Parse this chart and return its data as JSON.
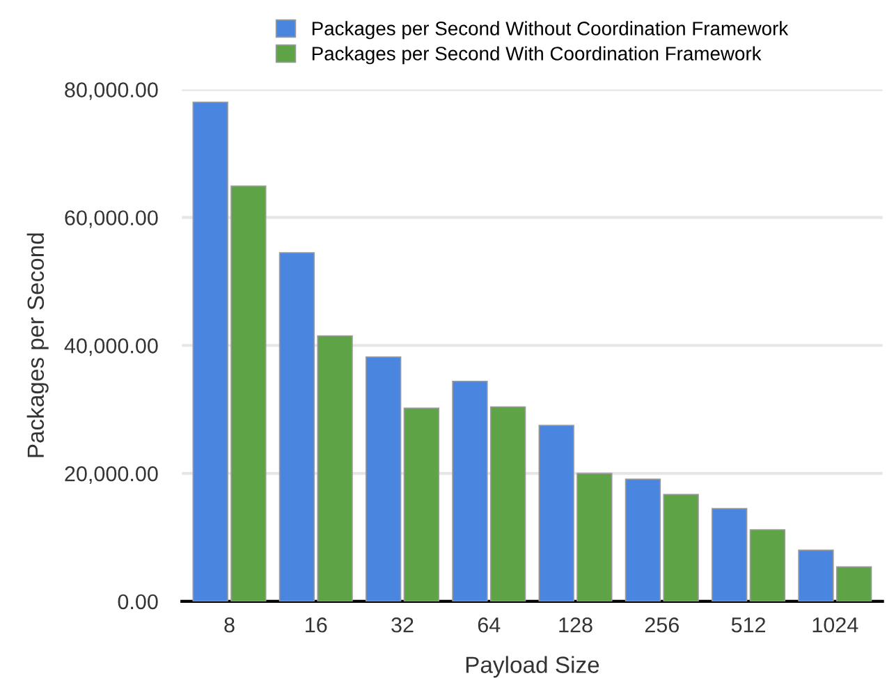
{
  "chart_data": {
    "type": "bar",
    "xlabel": "Payload Size",
    "ylabel": "Packages per Second",
    "categories": [
      "8",
      "16",
      "32",
      "64",
      "128",
      "256",
      "512",
      "1024"
    ],
    "series": [
      {
        "name": "Packages per Second Without Coordination Framework",
        "color": "#4a86e0",
        "values": [
          78000,
          54500,
          38200,
          34400,
          27500,
          19100,
          14500,
          8000
        ]
      },
      {
        "name": "Packages per Second With Coordination Framework",
        "color": "#5ea447",
        "values": [
          64900,
          41500,
          30200,
          30400,
          20000,
          16700,
          11200,
          5400
        ]
      }
    ],
    "ylim": [
      0,
      80000
    ],
    "yticks": [
      {
        "value": 0,
        "label": "0.00"
      },
      {
        "value": 20000,
        "label": "20,000.00"
      },
      {
        "value": 40000,
        "label": "40,000.00"
      },
      {
        "value": 60000,
        "label": "60,000.00"
      },
      {
        "value": 80000,
        "label": "80,000.00"
      }
    ],
    "grid": "y",
    "legend": "top"
  }
}
